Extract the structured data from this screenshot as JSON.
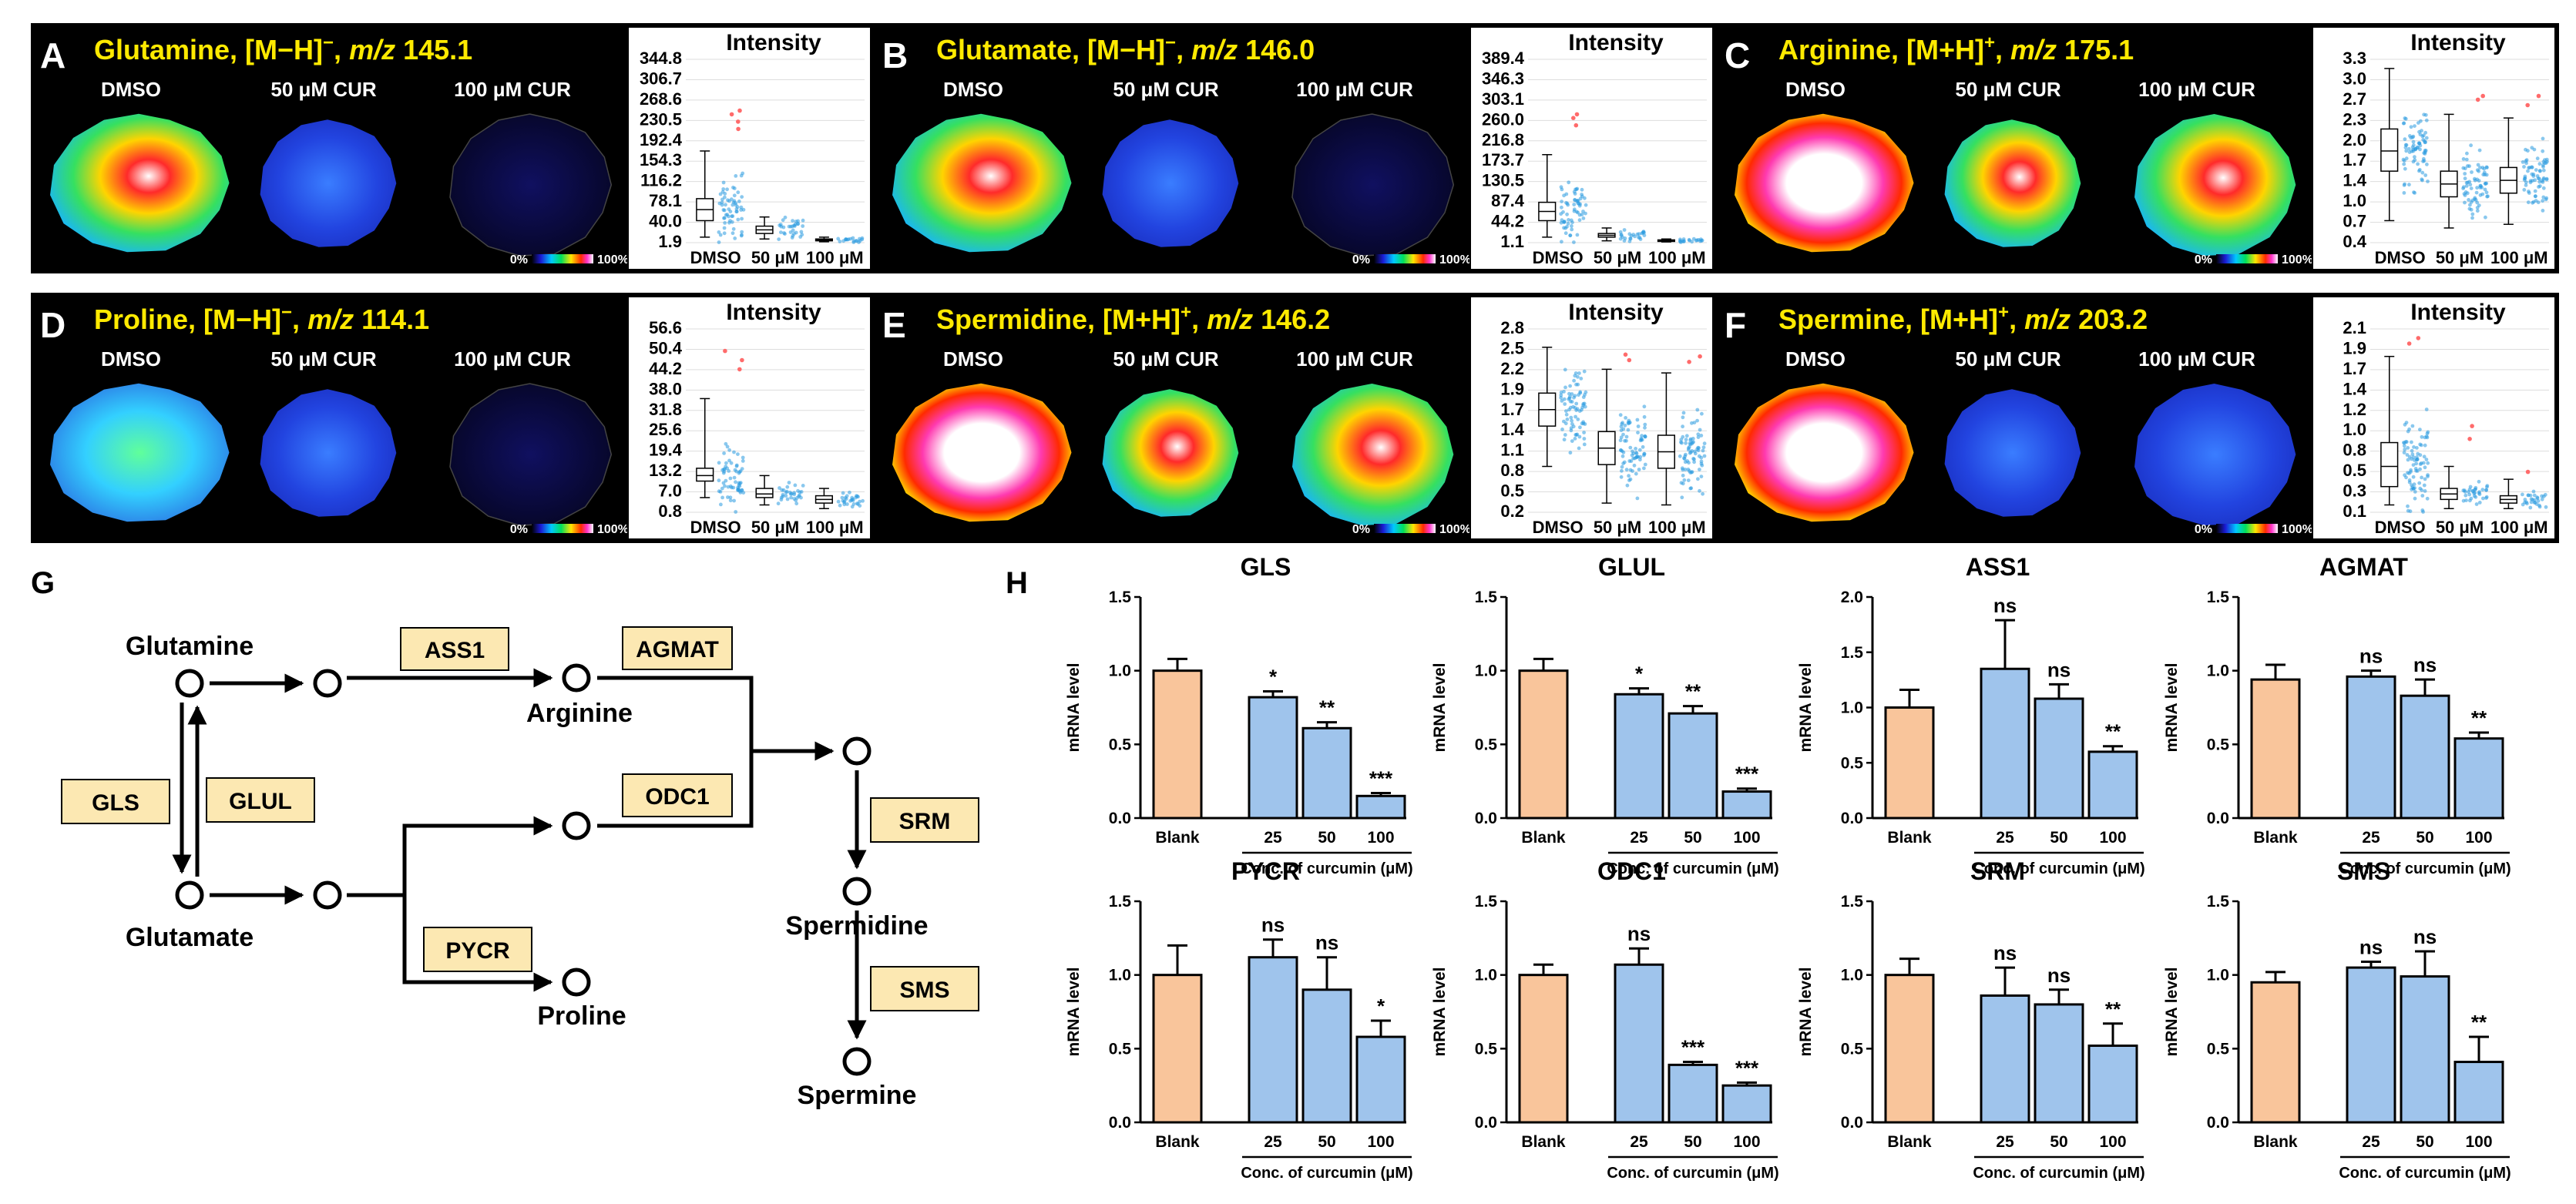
{
  "colors": {
    "panel_bg": "#000000",
    "title": "#ffea00",
    "blank_bar": "#f9c59b",
    "cur_bar": "#9fc4ec",
    "node_box": "#fce8b2",
    "dot_blue": "#2a9be0",
    "dot_red": "#ff6b6b"
  },
  "msi": [
    {
      "letter": "A",
      "title_pre": "Glutamine, [M−H]",
      "sup": "−",
      "title_mid": ", ",
      "mz": "m/z",
      "mz_val": " 145.1",
      "cols": [
        "DMSO",
        "50 μM CUR",
        "100 μM CUR"
      ],
      "cb_min": "0%",
      "cb_max": "100%",
      "intensity_label": "Intensity",
      "yticks": [
        "344.8",
        "306.7",
        "268.6",
        "230.5",
        "192.4",
        "154.3",
        "116.2",
        "78.1",
        "40.0",
        "1.9"
      ],
      "xcats": [
        "DMSO",
        "50 μM",
        "100 μM"
      ],
      "map_fill": [
        "hot",
        "blue",
        "dark"
      ],
      "box": [
        {
          "med": 0.18,
          "q1": 0.12,
          "q3": 0.24,
          "lo": 0.03,
          "hi": 0.5,
          "spread": 0.3,
          "out": [
            0.62,
            0.66,
            0.7,
            0.72
          ]
        },
        {
          "med": 0.07,
          "q1": 0.05,
          "q3": 0.09,
          "lo": 0.02,
          "hi": 0.14,
          "spread": 0.1,
          "out": []
        },
        {
          "med": 0.015,
          "q1": 0.01,
          "q3": 0.02,
          "lo": 0.005,
          "hi": 0.03,
          "spread": 0.02,
          "out": []
        }
      ]
    },
    {
      "letter": "B",
      "title_pre": "Glutamate, [M−H]",
      "sup": "−",
      "title_mid": ", ",
      "mz": "m/z",
      "mz_val": " 146.0",
      "cols": [
        "DMSO",
        "50 μM CUR",
        "100 μM CUR"
      ],
      "cb_min": "0%",
      "cb_max": "100%",
      "intensity_label": "Intensity",
      "yticks": [
        "389.4",
        "346.3",
        "303.1",
        "260.0",
        "216.8",
        "173.7",
        "130.5",
        "87.4",
        "44.2",
        "1.1"
      ],
      "xcats": [
        "DMSO",
        "50 μM",
        "100 μM"
      ],
      "map_fill": [
        "hot",
        "blue",
        "dark"
      ],
      "box": [
        {
          "med": 0.17,
          "q1": 0.12,
          "q3": 0.22,
          "lo": 0.03,
          "hi": 0.48,
          "spread": 0.3,
          "out": [
            0.64,
            0.68,
            0.7
          ]
        },
        {
          "med": 0.04,
          "q1": 0.03,
          "q3": 0.05,
          "lo": 0.01,
          "hi": 0.08,
          "spread": 0.06,
          "out": []
        },
        {
          "med": 0.01,
          "q1": 0.008,
          "q3": 0.015,
          "lo": 0.004,
          "hi": 0.02,
          "spread": 0.02,
          "out": []
        }
      ]
    },
    {
      "letter": "C",
      "title_pre": "Arginine, [M+H]",
      "sup": "+",
      "title_mid": ", ",
      "mz": "m/z",
      "mz_val": " 175.1",
      "cols": [
        "DMSO",
        "50 μM CUR",
        "100 μM CUR"
      ],
      "cb_min": "0%",
      "cb_max": "100%",
      "intensity_label": "Intensity",
      "yticks": [
        "3.3",
        "3.0",
        "2.7",
        "2.3",
        "2.0",
        "1.7",
        "1.4",
        "1.0",
        "0.7",
        "0.4"
      ],
      "xcats": [
        "DMSO",
        "50 μM",
        "100 μM"
      ],
      "map_fill": [
        "white",
        "hot",
        "hot"
      ],
      "box": [
        {
          "med": 0.5,
          "q1": 0.39,
          "q3": 0.62,
          "lo": 0.12,
          "hi": 0.95,
          "spread": 0.4,
          "out": []
        },
        {
          "med": 0.32,
          "q1": 0.25,
          "q3": 0.39,
          "lo": 0.08,
          "hi": 0.7,
          "spread": 0.35,
          "out": [
            0.78,
            0.8
          ]
        },
        {
          "med": 0.34,
          "q1": 0.27,
          "q3": 0.41,
          "lo": 0.1,
          "hi": 0.68,
          "spread": 0.35,
          "out": [
            0.75,
            0.8
          ]
        }
      ]
    },
    {
      "letter": "D",
      "title_pre": "Proline, [M−H]",
      "sup": "−",
      "title_mid": ", ",
      "mz": "m/z",
      "mz_val": " 114.1",
      "cols": [
        "DMSO",
        "50 μM CUR",
        "100 μM CUR"
      ],
      "cb_min": "0%",
      "cb_max": "100%",
      "intensity_label": "Intensity",
      "yticks": [
        "56.6",
        "50.4",
        "44.2",
        "38.0",
        "31.8",
        "25.6",
        "19.4",
        "13.2",
        "7.0",
        "0.8"
      ],
      "xcats": [
        "DMSO",
        "50 μM",
        "100 μM"
      ],
      "map_fill": [
        "cyan",
        "blue",
        "dark"
      ],
      "box": [
        {
          "med": 0.2,
          "q1": 0.17,
          "q3": 0.24,
          "lo": 0.08,
          "hi": 0.62,
          "spread": 0.3,
          "out": [
            0.78,
            0.83,
            0.88
          ]
        },
        {
          "med": 0.1,
          "q1": 0.08,
          "q3": 0.13,
          "lo": 0.04,
          "hi": 0.2,
          "spread": 0.1,
          "out": []
        },
        {
          "med": 0.07,
          "q1": 0.05,
          "q3": 0.09,
          "lo": 0.02,
          "hi": 0.13,
          "spread": 0.08,
          "out": []
        }
      ]
    },
    {
      "letter": "E",
      "title_pre": "Spermidine, [M+H]",
      "sup": "+",
      "title_mid": ", ",
      "mz": "m/z",
      "mz_val": " 146.2",
      "cols": [
        "DMSO",
        "50 μM CUR",
        "100 μM CUR"
      ],
      "cb_min": "0%",
      "cb_max": "100%",
      "intensity_label": "Intensity",
      "yticks": [
        "2.8",
        "2.5",
        "2.2",
        "1.9",
        "1.7",
        "1.4",
        "1.1",
        "0.8",
        "0.5",
        "0.2"
      ],
      "xcats": [
        "DMSO",
        "50 μM",
        "100 μM"
      ],
      "map_fill": [
        "white",
        "hot",
        "hot"
      ],
      "box": [
        {
          "med": 0.56,
          "q1": 0.47,
          "q3": 0.65,
          "lo": 0.25,
          "hi": 0.9,
          "spread": 0.4,
          "out": []
        },
        {
          "med": 0.35,
          "q1": 0.26,
          "q3": 0.44,
          "lo": 0.05,
          "hi": 0.78,
          "spread": 0.4,
          "out": [
            0.83,
            0.86
          ]
        },
        {
          "med": 0.33,
          "q1": 0.24,
          "q3": 0.42,
          "lo": 0.04,
          "hi": 0.76,
          "spread": 0.4,
          "out": [
            0.82,
            0.85
          ]
        }
      ]
    },
    {
      "letter": "F",
      "title_pre": "Spermine, [M+H]",
      "sup": "+",
      "title_mid": ", ",
      "mz": "m/z",
      "mz_val": " 203.2",
      "cols": [
        "DMSO",
        "50 μM CUR",
        "100 μM CUR"
      ],
      "cb_min": "0%",
      "cb_max": "100%",
      "intensity_label": "Intensity",
      "yticks": [
        "2.1",
        "1.9",
        "1.7",
        "1.4",
        "1.2",
        "1.0",
        "0.8",
        "0.5",
        "0.3",
        "0.1"
      ],
      "xcats": [
        "DMSO",
        "50 μM",
        "100 μM"
      ],
      "map_fill": [
        "white",
        "blue",
        "blue"
      ],
      "box": [
        {
          "med": 0.25,
          "q1": 0.14,
          "q3": 0.38,
          "lo": 0.04,
          "hi": 0.85,
          "spread": 0.45,
          "out": [
            0.92,
            0.95
          ]
        },
        {
          "med": 0.1,
          "q1": 0.07,
          "q3": 0.13,
          "lo": 0.02,
          "hi": 0.25,
          "spread": 0.12,
          "out": [
            0.4,
            0.47
          ]
        },
        {
          "med": 0.07,
          "q1": 0.05,
          "q3": 0.09,
          "lo": 0.02,
          "hi": 0.18,
          "spread": 0.08,
          "out": [
            0.22
          ]
        }
      ]
    }
  ],
  "pathway": {
    "letter": "G",
    "nodes": {
      "glutamine": "Glutamine",
      "glutamate": "Glutamate",
      "arginine": "Arginine",
      "proline": "Proline",
      "spermidine": "Spermidine",
      "spermine": "Spermine"
    },
    "enzymes": {
      "ass1": "ASS1",
      "agmat": "AGMAT",
      "odc1": "ODC1",
      "gls": "GLS",
      "glul": "GLUL",
      "pycr": "PYCR",
      "srm": "SRM",
      "sms": "SMS"
    }
  },
  "bars_letter": "H",
  "bars_common": {
    "ylabel": "mRNA level",
    "categories": [
      "Blank",
      "25",
      "50",
      "100"
    ],
    "xlabel": "Conc. of curcumin (μM)"
  },
  "chart_data": [
    {
      "type": "bar",
      "title": "GLS",
      "ymax": 1.5,
      "ytick_labels": [
        "0.0",
        "0.5",
        "1.0",
        "1.5"
      ],
      "values": [
        1.0,
        0.82,
        0.61,
        0.15
      ],
      "errors": [
        0.08,
        0.04,
        0.04,
        0.02
      ],
      "sig": [
        "",
        "*",
        "**",
        "***"
      ]
    },
    {
      "type": "bar",
      "title": "GLUL",
      "ymax": 1.5,
      "ytick_labels": [
        "0.0",
        "0.5",
        "1.0",
        "1.5"
      ],
      "values": [
        1.0,
        0.84,
        0.71,
        0.18
      ],
      "errors": [
        0.08,
        0.04,
        0.05,
        0.02
      ],
      "sig": [
        "",
        "*",
        "**",
        "***"
      ]
    },
    {
      "type": "bar",
      "title": "ASS1",
      "ymax": 2.0,
      "ytick_labels": [
        "0.0",
        "0.5",
        "1.0",
        "1.5",
        "2.0"
      ],
      "values": [
        1.0,
        1.35,
        1.08,
        0.6
      ],
      "errors": [
        0.16,
        0.44,
        0.13,
        0.05
      ],
      "sig": [
        "",
        "ns",
        "ns",
        "**"
      ]
    },
    {
      "type": "bar",
      "title": "AGMAT",
      "ymax": 1.5,
      "ytick_labels": [
        "0.0",
        "0.5",
        "1.0",
        "1.5"
      ],
      "values": [
        0.94,
        0.96,
        0.83,
        0.54
      ],
      "errors": [
        0.1,
        0.04,
        0.11,
        0.04
      ],
      "sig": [
        "",
        "ns",
        "ns",
        "**"
      ]
    },
    {
      "type": "bar",
      "title": "PYCR",
      "ymax": 1.5,
      "ytick_labels": [
        "0.0",
        "0.5",
        "1.0",
        "1.5"
      ],
      "values": [
        1.0,
        1.12,
        0.9,
        0.58
      ],
      "errors": [
        0.2,
        0.12,
        0.22,
        0.11
      ],
      "sig": [
        "",
        "ns",
        "ns",
        "*"
      ]
    },
    {
      "type": "bar",
      "title": "ODC1",
      "ymax": 1.5,
      "ytick_labels": [
        "0.0",
        "0.5",
        "1.0",
        "1.5"
      ],
      "values": [
        1.0,
        1.07,
        0.39,
        0.25
      ],
      "errors": [
        0.07,
        0.11,
        0.02,
        0.02
      ],
      "sig": [
        "",
        "ns",
        "***",
        "***"
      ]
    },
    {
      "type": "bar",
      "title": "SRM",
      "ymax": 1.5,
      "ytick_labels": [
        "0.0",
        "0.5",
        "1.0",
        "1.5"
      ],
      "values": [
        1.0,
        0.86,
        0.8,
        0.52
      ],
      "errors": [
        0.11,
        0.19,
        0.1,
        0.15
      ],
      "sig": [
        "",
        "ns",
        "ns",
        "**"
      ]
    },
    {
      "type": "bar",
      "title": "SMS",
      "ymax": 1.5,
      "ytick_labels": [
        "0.0",
        "0.5",
        "1.0",
        "1.5"
      ],
      "values": [
        0.95,
        1.05,
        0.99,
        0.41
      ],
      "errors": [
        0.07,
        0.04,
        0.17,
        0.17
      ],
      "sig": [
        "",
        "ns",
        "ns",
        "**"
      ]
    }
  ]
}
